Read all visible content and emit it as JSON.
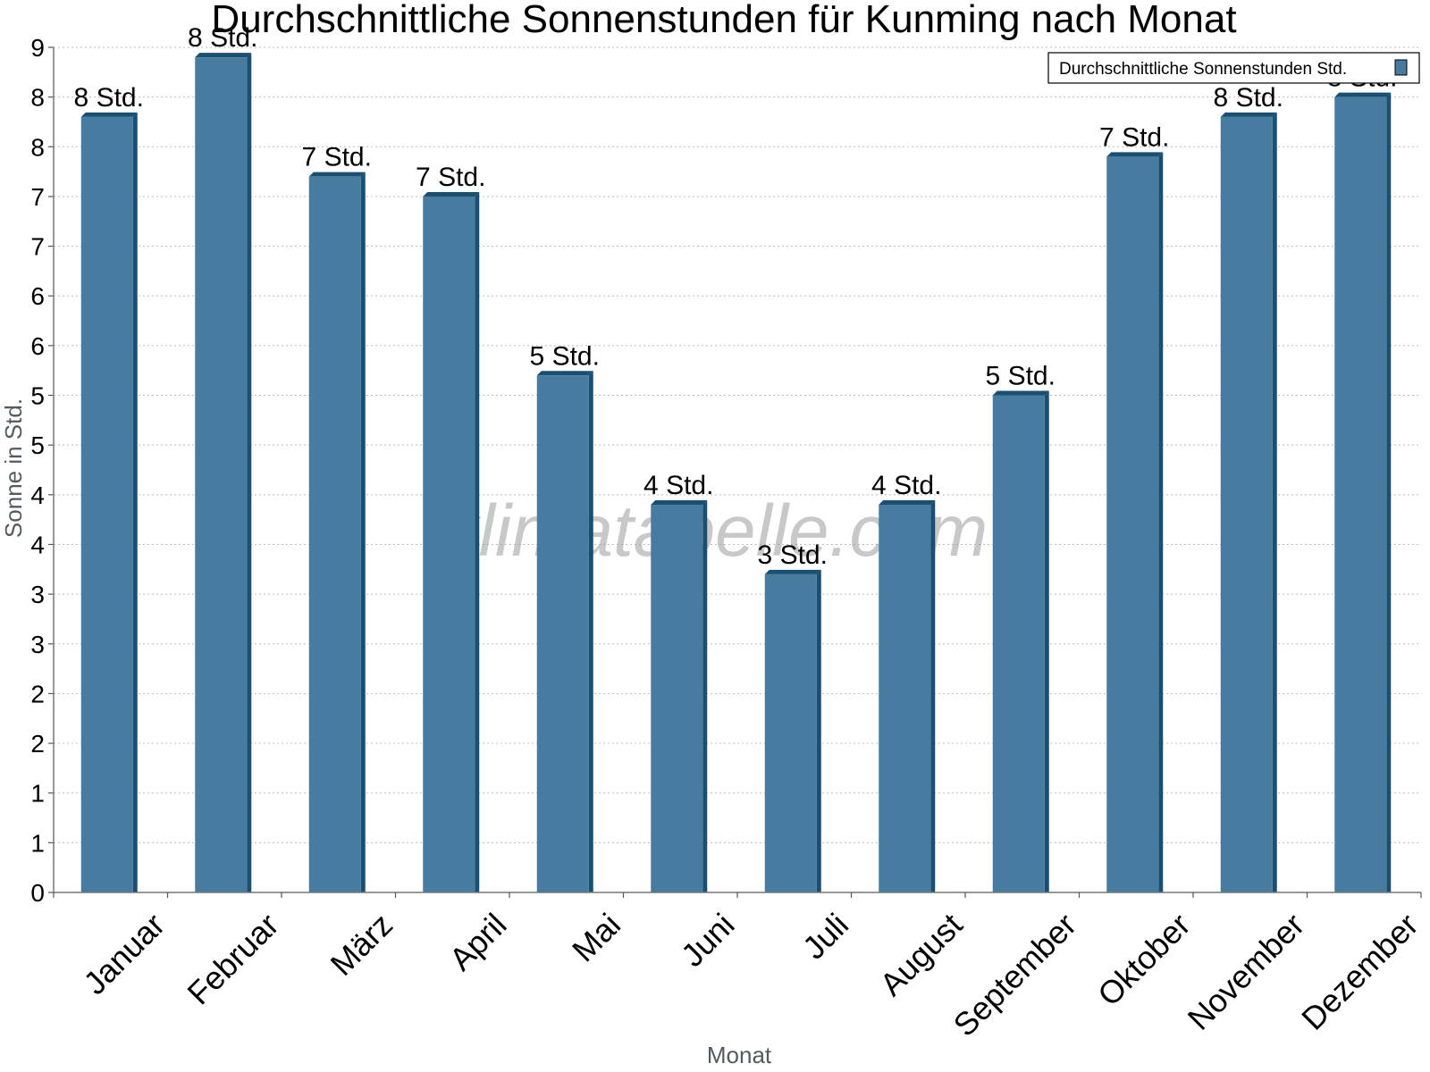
{
  "chart_data": {
    "type": "bar",
    "title": "Durchschnittliche Sonnenstunden für Kunming nach Monat",
    "xlabel": "Monat",
    "ylabel": "Sonne in Std.",
    "ylim": [
      0,
      8.5
    ],
    "ytick_labels": [
      "0",
      "1",
      "1",
      "2",
      "2",
      "3",
      "3",
      "4",
      "4",
      "5",
      "5",
      "6",
      "6",
      "7",
      "7",
      "8",
      "8",
      "9"
    ],
    "grid": true,
    "legend_position": "top-right",
    "categories": [
      "Januar",
      "Februar",
      "März",
      "April",
      "Mai",
      "Juni",
      "Juli",
      "August",
      "September",
      "Oktober",
      "November",
      "Dezember"
    ],
    "series": [
      {
        "name": "Durchschnittliche Sonnenstunden Std.",
        "values": [
          7.8,
          8.4,
          7.2,
          7.0,
          5.2,
          3.9,
          3.2,
          3.9,
          5.0,
          7.4,
          7.8,
          8.0
        ],
        "labels": [
          "8 Std.",
          "8 Std.",
          "7 Std.",
          "7 Std.",
          "5 Std.",
          "4 Std.",
          "3 Std.",
          "4 Std.",
          "5 Std.",
          "7 Std.",
          "8 Std.",
          "8 Std."
        ]
      }
    ],
    "colors": {
      "bar": "#477b9f",
      "bar_edge": "#1b4f72",
      "grid": "#bbbbbb"
    },
    "watermark": "klimatabelle.com"
  }
}
